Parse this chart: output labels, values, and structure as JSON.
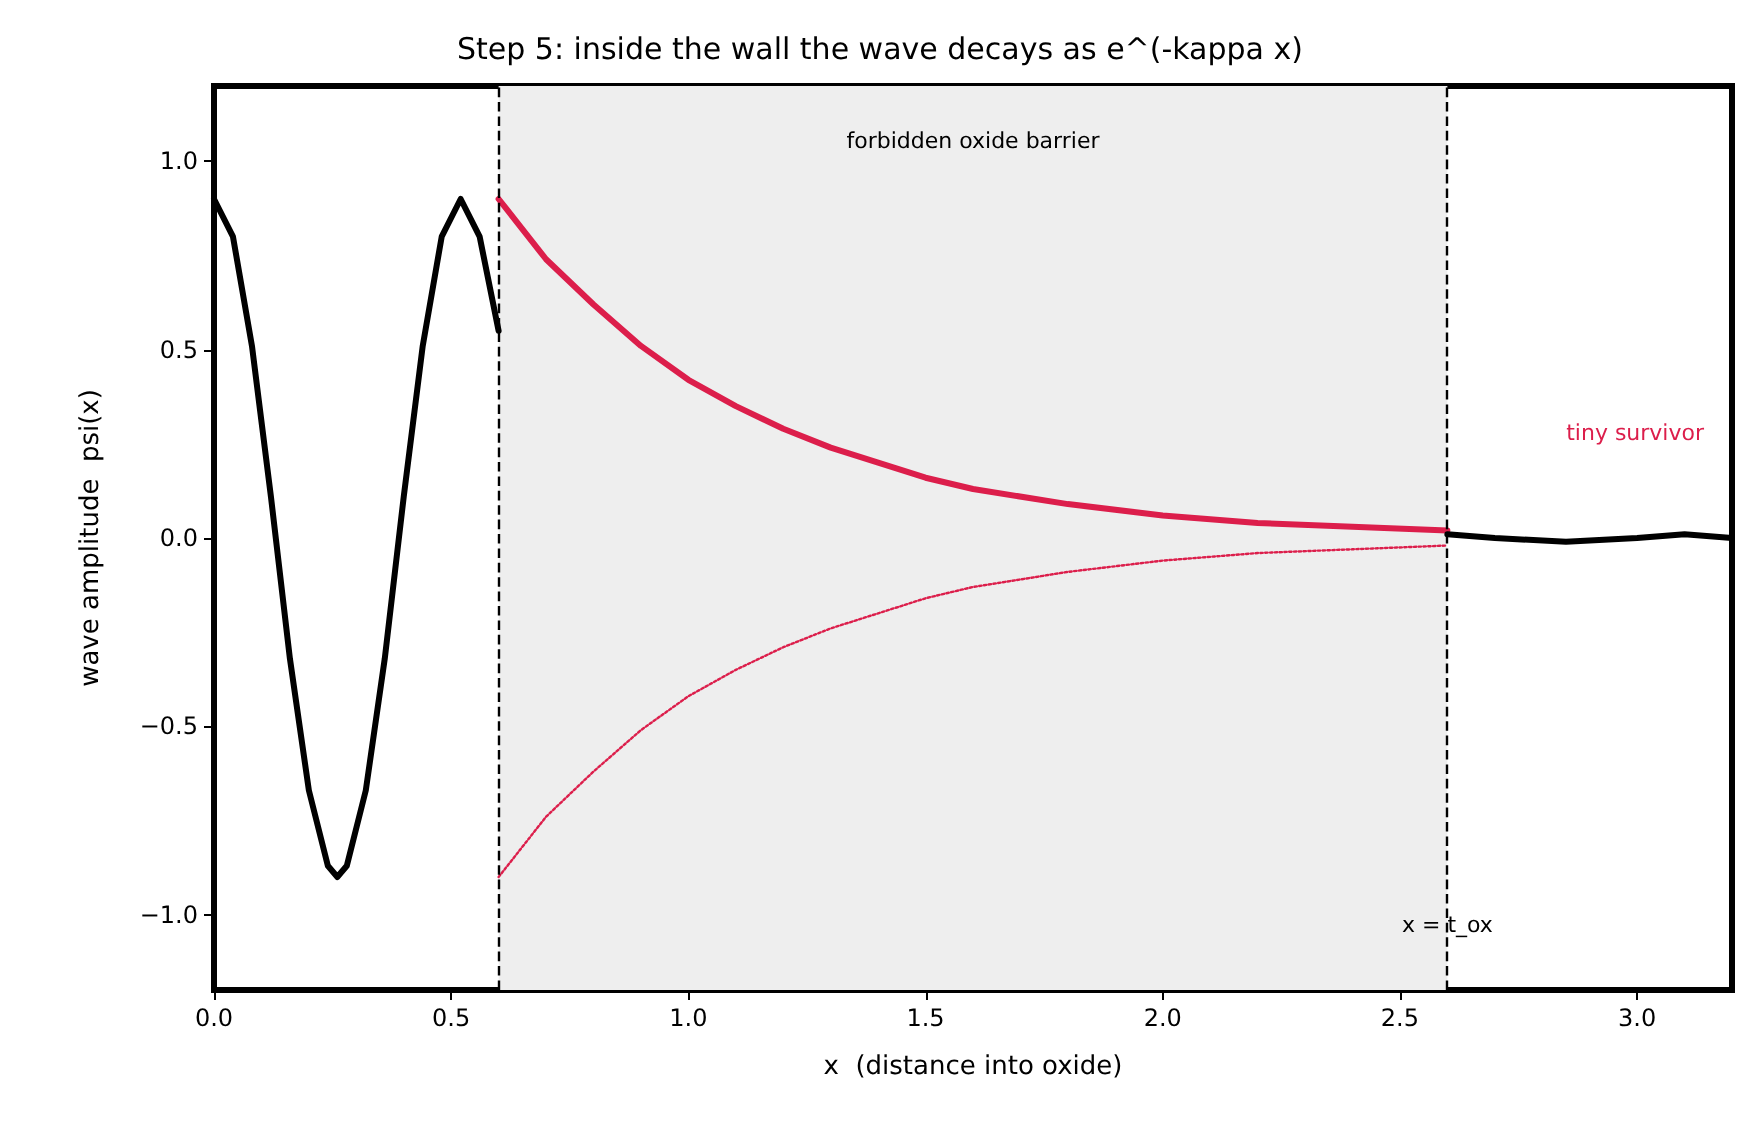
{
  "chart_data": {
    "type": "line",
    "title": "Step 5: inside the wall the wave decays as e^(-kappa x)",
    "xlabel": "x  (distance into oxide)",
    "ylabel": "wave amplitude  psi(x)",
    "series": [
      {
        "color": "#000000",
        "x": [
          0,
          0.04,
          0.08,
          0.12,
          0.16,
          0.2,
          0.24,
          0.26,
          0.28,
          0.32,
          0.36,
          0.4,
          0.44,
          0.48,
          0.52,
          0.56,
          0.6
        ],
        "values": [
          0.9,
          0.8,
          0.51,
          0.11,
          -0.32,
          -0.67,
          -0.87,
          -0.9,
          -0.87,
          -0.67,
          -0.32,
          0.11,
          0.51,
          0.8,
          0.9,
          0.8,
          0.55
        ]
      },
      {
        "color": "#dc1e4b",
        "x": [
          0.6,
          0.7,
          0.8,
          0.9,
          1.0,
          1.1,
          1.2,
          1.3,
          1.4,
          1.5,
          1.6,
          1.8,
          2.0,
          2.2,
          2.4,
          2.6
        ],
        "values": [
          0.9,
          0.74,
          0.62,
          0.51,
          0.42,
          0.35,
          0.29,
          0.24,
          0.2,
          0.16,
          0.13,
          0.09,
          0.06,
          0.04,
          0.03,
          0.02
        ]
      },
      {
        "color": "#dc1e4b",
        "line_style": "dotted",
        "x": [
          0.6,
          0.7,
          0.8,
          0.9,
          1.0,
          1.1,
          1.2,
          1.3,
          1.4,
          1.5,
          1.6,
          1.8,
          2.0,
          2.2,
          2.4,
          2.6
        ],
        "values": [
          -0.9,
          -0.74,
          -0.62,
          -0.51,
          -0.42,
          -0.35,
          -0.29,
          -0.24,
          -0.2,
          -0.16,
          -0.13,
          -0.09,
          -0.06,
          -0.04,
          -0.03,
          -0.02
        ]
      },
      {
        "color": "#000000",
        "x": [
          2.6,
          2.7,
          2.85,
          3.0,
          3.1,
          3.2
        ],
        "values": [
          0.01,
          0.0,
          -0.01,
          0.0,
          0.01,
          0.0
        ]
      }
    ],
    "xlim": [
      0,
      3.2
    ],
    "xticks": [
      {
        "value": 0,
        "label": "0.0"
      },
      {
        "value": 0.5,
        "label": "0.5"
      },
      {
        "value": 1,
        "label": "1.0"
      },
      {
        "value": 1.5,
        "label": "1.5"
      },
      {
        "value": 2,
        "label": "2.0"
      },
      {
        "value": 2.5,
        "label": "2.5"
      },
      {
        "value": 3,
        "label": "3.0"
      }
    ],
    "ylim": [
      -1.2,
      1.2
    ],
    "yticks": [
      {
        "value": -1,
        "label": "−1.0"
      },
      {
        "value": -0.5,
        "label": "−0.5"
      },
      {
        "value": 0,
        "label": "0.0"
      },
      {
        "value": 0.5,
        "label": "0.5"
      },
      {
        "value": 1,
        "label": "1.0"
      }
    ],
    "bands": [
      {
        "axis": "x",
        "from": 0.6,
        "to": 2.6,
        "label": "forbidden oxide barrier",
        "color": "#eeeeee"
      }
    ],
    "ref_lines": [
      {
        "axis": "x",
        "value": 0.6,
        "label": null,
        "color": "#000000",
        "line_style": "dashed"
      },
      {
        "axis": "x",
        "value": 2.6,
        "label": "x = t_ox",
        "color": "#000000",
        "line_style": "dashed"
      }
    ],
    "annotations": [
      "tiny survivor"
    ],
    "grid": false,
    "line_style": "solid",
    "marker": "none"
  }
}
